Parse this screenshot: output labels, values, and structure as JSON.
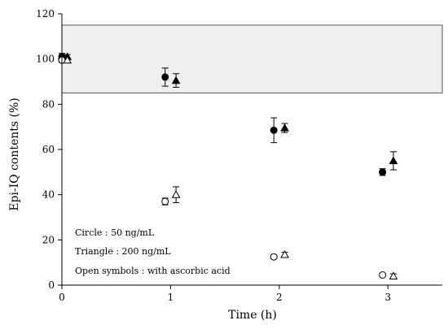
{
  "chart_data": {
    "type": "scatter",
    "xlabel": "Time (h)",
    "ylabel": "Epi-IQ contents (%)",
    "xlim": [
      0,
      3.5
    ],
    "ylim": [
      0,
      120
    ],
    "xticks": [
      "0",
      "1",
      "2",
      "3"
    ],
    "yticks": [
      "0",
      "20",
      "40",
      "60",
      "80",
      "100",
      "120"
    ],
    "reference_band": {
      "y_low": 85,
      "y_high": 115
    },
    "annotations": [
      "Circle : 50 ng/mL",
      "Triangle : 200 ng/mL",
      "Open symbols : with ascorbic acid"
    ],
    "series": [
      {
        "marker": "circle",
        "filled": true,
        "x": [
          0,
          0.95,
          1.95,
          2.95
        ],
        "y": [
          101,
          92,
          68.5,
          50
        ],
        "err": [
          1.5,
          4,
          5.5,
          1.5
        ]
      },
      {
        "marker": "triangle",
        "filled": true,
        "x": [
          0.05,
          1.05,
          2.05,
          3.05
        ],
        "y": [
          101,
          90.5,
          69.5,
          55
        ],
        "err": [
          1,
          3,
          2,
          4
        ]
      },
      {
        "marker": "circle",
        "filled": false,
        "x": [
          0,
          0.95,
          1.95,
          2.95
        ],
        "y": [
          99.5,
          37,
          12.5,
          4.5
        ],
        "err": [
          1,
          1.5,
          0.5,
          0.5
        ]
      },
      {
        "marker": "triangle",
        "filled": false,
        "x": [
          0.05,
          1.05,
          2.05,
          3.05
        ],
        "y": [
          99.5,
          40,
          13.5,
          4
        ],
        "err": [
          1,
          3.5,
          1,
          1
        ]
      }
    ]
  }
}
